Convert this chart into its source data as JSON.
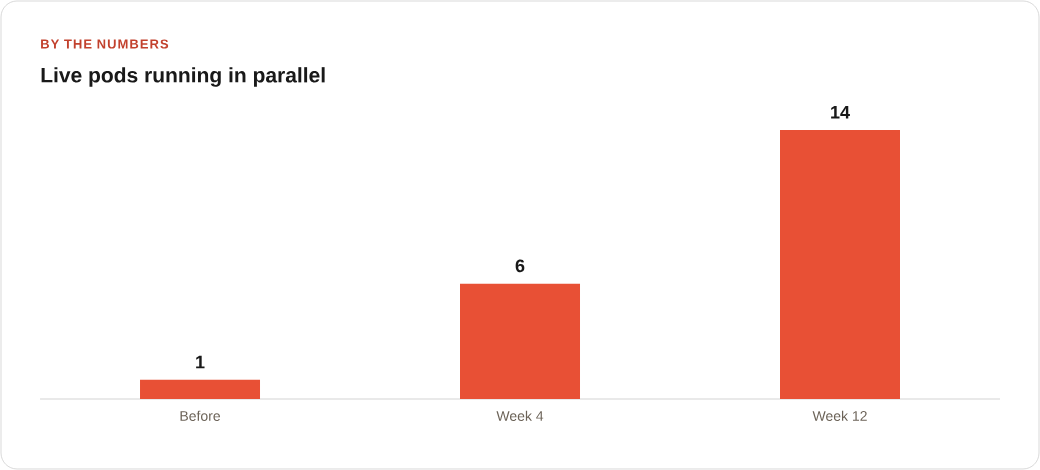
{
  "chart_data": {
    "type": "bar",
    "subtitle": "BY THE NUMBERS",
    "title": "Live pods running in parallel",
    "categories": [
      "Before",
      "Week 4",
      "Week 12"
    ],
    "values": [
      1,
      6,
      14
    ],
    "color": "#e85035",
    "data_labels": true
  }
}
